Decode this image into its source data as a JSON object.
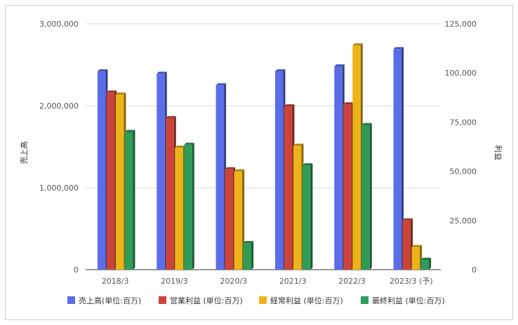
{
  "chart_data": {
    "type": "bar",
    "categories": [
      "2018/3",
      "2019/3",
      "2020/3",
      "2021/3",
      "2022/3",
      "2023/3 (予)"
    ],
    "left_axis": {
      "label": "売上高",
      "min": 0,
      "max": 3000000,
      "ticks": [
        "0",
        "1,000,000",
        "2,000,000",
        "3,000,000"
      ],
      "tick_values": [
        0,
        1000000,
        2000000,
        3000000
      ]
    },
    "right_axis": {
      "label": "利益",
      "min": 0,
      "max": 125000,
      "ticks": [
        "0",
        "25,000",
        "50,000",
        "75,000",
        "100,000",
        "125,000"
      ],
      "tick_values": [
        0,
        25000,
        50000,
        75000,
        100000,
        125000
      ]
    },
    "series": [
      {
        "name": "売上高(単位:百万)",
        "axis": "left",
        "color": "#5b6ee8",
        "values": [
          2420000,
          2390000,
          2250000,
          2420000,
          2480000,
          2690000
        ]
      },
      {
        "name": "営業利益 (単位:百万)",
        "axis": "right",
        "color": "#cc4339",
        "values": [
          90000,
          77000,
          51000,
          83000,
          84000,
          25000
        ]
      },
      {
        "name": "経常利益 (単位:百万)",
        "axis": "right",
        "color": "#ecb418",
        "values": [
          89000,
          62000,
          50000,
          63000,
          114000,
          11500
        ]
      },
      {
        "name": "最終利益 (単位:百万)",
        "axis": "right",
        "color": "#2f9c58",
        "values": [
          70000,
          63500,
          13500,
          53000,
          73500,
          5000
        ]
      }
    ],
    "grid": true,
    "legend": "bottom"
  }
}
